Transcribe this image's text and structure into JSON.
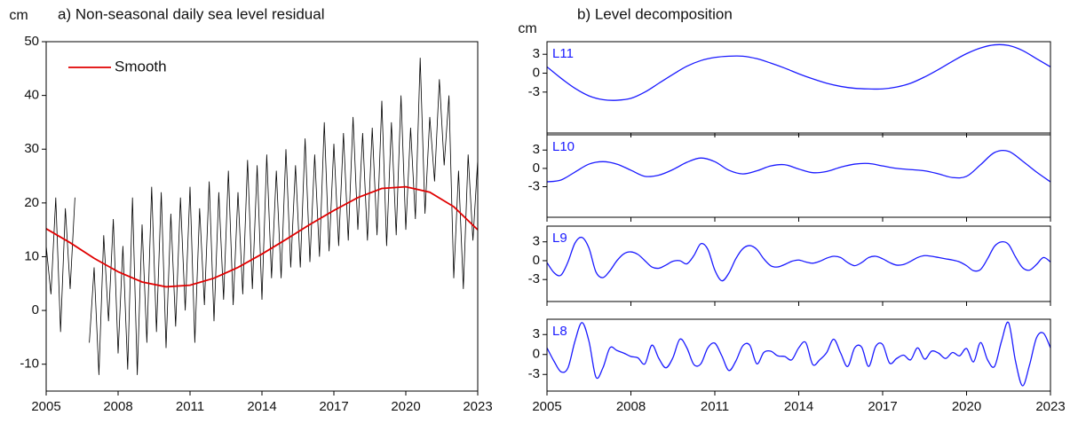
{
  "chart_data": [
    {
      "type": "line",
      "title": "a)  Non-seasonal daily sea level residual",
      "y_label": "cm",
      "xlim": [
        2005,
        2023
      ],
      "xticks": [
        2005,
        2008,
        2011,
        2014,
        2017,
        2020,
        2023
      ],
      "show_xtick_labels": true,
      "ylim": [
        -15,
        50
      ],
      "yticks": [
        -10,
        0,
        10,
        20,
        30,
        40,
        50
      ],
      "legend": "upper left",
      "curve": "straight",
      "series": [
        {
          "color": "#000000",
          "x": [
            2005.0,
            2005.2,
            2005.4,
            2005.6,
            2005.8,
            2006.0,
            2006.2,
            2006.4,
            2006.6,
            2006.8,
            2007.0,
            2007.2,
            2007.4,
            2007.6,
            2007.8,
            2008.0,
            2008.2,
            2008.4,
            2008.6,
            2008.8,
            2009.0,
            2009.2,
            2009.4,
            2009.6,
            2009.8,
            2010.0,
            2010.2,
            2010.4,
            2010.6,
            2010.8,
            2011.0,
            2011.2,
            2011.4,
            2011.6,
            2011.8,
            2012.0,
            2012.2,
            2012.4,
            2012.6,
            2012.8,
            2013.0,
            2013.2,
            2013.4,
            2013.6,
            2013.8,
            2014.0,
            2014.2,
            2014.4,
            2014.6,
            2014.8,
            2015.0,
            2015.2,
            2015.4,
            2015.6,
            2015.8,
            2016.0,
            2016.2,
            2016.4,
            2016.6,
            2016.8,
            2017.0,
            2017.2,
            2017.4,
            2017.6,
            2017.8,
            2018.0,
            2018.2,
            2018.4,
            2018.6,
            2018.8,
            2019.0,
            2019.2,
            2019.4,
            2019.6,
            2019.8,
            2020.0,
            2020.2,
            2020.4,
            2020.6,
            2020.8,
            2021.0,
            2021.2,
            2021.4,
            2021.6,
            2021.8,
            2022.0,
            2022.2,
            2022.4,
            2022.6,
            2022.8,
            2023.0
          ],
          "values": [
            12,
            3,
            21,
            -4,
            19,
            4,
            21,
            null,
            null,
            -6,
            8,
            -12,
            14,
            -2,
            17,
            -8,
            12,
            -11,
            21,
            -12,
            16,
            -6,
            23,
            -4,
            22,
            -7,
            18,
            -3,
            21,
            0,
            23,
            -6,
            19,
            1,
            24,
            -2,
            22,
            2,
            26,
            1,
            22,
            3,
            28,
            4,
            27,
            2,
            29,
            6,
            26,
            6,
            30,
            8,
            27,
            8,
            32,
            9,
            29,
            10,
            35,
            11,
            31,
            12,
            33,
            13,
            36,
            15,
            33,
            13,
            34,
            14,
            39,
            12,
            35,
            14,
            40,
            15,
            34,
            17,
            47,
            18,
            36,
            24,
            43,
            27,
            40,
            6,
            26,
            4,
            29,
            13,
            28
          ]
        },
        {
          "name": "Smooth",
          "color": "#e00000",
          "x": [
            2005,
            2006,
            2007,
            2008,
            2009,
            2010,
            2011,
            2012,
            2013,
            2014,
            2015,
            2016,
            2017,
            2018,
            2019,
            2020,
            2021,
            2022,
            2023
          ],
          "values": [
            15.2,
            12.6,
            9.7,
            7.2,
            5.3,
            4.4,
            4.7,
            6.0,
            8.0,
            10.5,
            13.2,
            16.0,
            18.6,
            21.0,
            22.7,
            23.0,
            22.0,
            19.3,
            15.0
          ]
        }
      ]
    },
    {
      "type": "line",
      "title": "b) Level decomposition",
      "y_label": "cm",
      "xlim": [
        2005,
        2023
      ],
      "xticks": [
        2005,
        2008,
        2011,
        2014,
        2017,
        2020,
        2023
      ],
      "show_xtick_labels": false,
      "ylim": [
        -9.5,
        5
      ],
      "yticks": [
        -3,
        0,
        3
      ],
      "curve": "smooth",
      "x": [
        2005,
        2005.5,
        2006,
        2006.5,
        2007,
        2007.5,
        2008,
        2008.5,
        2009,
        2009.5,
        2010,
        2010.5,
        2011,
        2011.5,
        2012,
        2012.5,
        2013,
        2013.5,
        2014,
        2014.5,
        2015,
        2015.5,
        2016,
        2016.5,
        2017,
        2017.5,
        2018,
        2018.5,
        2019,
        2019.5,
        2020,
        2020.5,
        2021,
        2021.5,
        2022,
        2022.5,
        2023
      ],
      "series": [
        {
          "name": "L11",
          "color": "#1a1aff",
          "values": [
            1.0,
            -0.8,
            -2.4,
            -3.6,
            -4.2,
            -4.3,
            -4.0,
            -3.0,
            -1.6,
            -0.2,
            1.1,
            2.0,
            2.5,
            2.7,
            2.7,
            2.3,
            1.6,
            0.8,
            -0.1,
            -0.9,
            -1.6,
            -2.1,
            -2.4,
            -2.5,
            -2.5,
            -2.2,
            -1.6,
            -0.6,
            0.6,
            1.9,
            3.1,
            4.0,
            4.5,
            4.4,
            3.6,
            2.3,
            1.0
          ]
        }
      ]
    },
    {
      "type": "line",
      "xlim": [
        2005,
        2023
      ],
      "xticks": [
        2005,
        2008,
        2011,
        2014,
        2017,
        2020,
        2023
      ],
      "show_xtick_labels": false,
      "ylim": [
        -8,
        5.5
      ],
      "yticks": [
        -3,
        0,
        3
      ],
      "curve": "smooth",
      "x": [
        2005,
        2005.5,
        2006,
        2006.5,
        2007,
        2007.5,
        2008,
        2008.5,
        2009,
        2009.5,
        2010,
        2010.5,
        2011,
        2011.5,
        2012,
        2012.5,
        2013,
        2013.5,
        2014,
        2014.5,
        2015,
        2015.5,
        2016,
        2016.5,
        2017,
        2017.5,
        2018,
        2018.5,
        2019,
        2019.5,
        2020,
        2020.5,
        2021,
        2021.5,
        2022,
        2022.5,
        2023
      ],
      "series": [
        {
          "name": "L10",
          "color": "#1a1aff",
          "values": [
            -2.2,
            -1.9,
            -0.6,
            0.7,
            1.1,
            0.7,
            -0.3,
            -1.3,
            -1.1,
            -0.2,
            1.0,
            1.7,
            1.1,
            -0.3,
            -0.9,
            -0.4,
            0.4,
            0.6,
            -0.1,
            -0.7,
            -0.5,
            0.2,
            0.7,
            0.8,
            0.4,
            0.0,
            -0.2,
            -0.4,
            -0.9,
            -1.5,
            -1.3,
            0.6,
            2.6,
            2.8,
            1.2,
            -0.6,
            -2.2
          ]
        }
      ]
    },
    {
      "type": "line",
      "xlim": [
        2005,
        2023
      ],
      "xticks": [
        2005,
        2008,
        2011,
        2014,
        2017,
        2020,
        2023
      ],
      "show_xtick_labels": false,
      "ylim": [
        -6.5,
        5.5
      ],
      "yticks": [
        -3,
        0,
        3
      ],
      "curve": "smooth",
      "x": [
        2005,
        2005.25,
        2005.5,
        2005.75,
        2006,
        2006.25,
        2006.5,
        2006.75,
        2007,
        2007.25,
        2007.5,
        2007.75,
        2008,
        2008.25,
        2008.5,
        2008.75,
        2009,
        2009.25,
        2009.5,
        2009.75,
        2010,
        2010.25,
        2010.5,
        2010.75,
        2011,
        2011.25,
        2011.5,
        2011.75,
        2012,
        2012.25,
        2012.5,
        2012.75,
        2013,
        2013.25,
        2013.5,
        2013.75,
        2014,
        2014.25,
        2014.5,
        2014.75,
        2015,
        2015.25,
        2015.5,
        2015.75,
        2016,
        2016.25,
        2016.5,
        2016.75,
        2017,
        2017.25,
        2017.5,
        2017.75,
        2018,
        2018.25,
        2018.5,
        2018.75,
        2019,
        2019.25,
        2019.5,
        2019.75,
        2020,
        2020.25,
        2020.5,
        2020.75,
        2021,
        2021.25,
        2021.5,
        2021.75,
        2022,
        2022.25,
        2022.5,
        2022.75,
        2023
      ],
      "series": [
        {
          "name": "L9",
          "color": "#1a1aff",
          "values": [
            -0.3,
            -1.9,
            -2.3,
            -0.2,
            2.8,
            3.7,
            2.0,
            -1.8,
            -2.7,
            -1.6,
            0.0,
            1.1,
            1.4,
            1.0,
            0.0,
            -1.0,
            -1.2,
            -0.7,
            -0.1,
            0.0,
            -0.5,
            0.8,
            2.7,
            1.8,
            -1.5,
            -3.2,
            -2.0,
            0.3,
            1.9,
            2.4,
            1.8,
            0.3,
            -0.8,
            -1.0,
            -0.6,
            -0.1,
            0.1,
            -0.2,
            -0.4,
            -0.1,
            0.4,
            0.7,
            0.5,
            -0.3,
            -0.8,
            -0.3,
            0.5,
            0.7,
            0.3,
            -0.3,
            -0.7,
            -0.6,
            -0.1,
            0.5,
            0.8,
            0.7,
            0.5,
            0.3,
            0.1,
            -0.2,
            -0.8,
            -1.6,
            -1.4,
            0.3,
            2.3,
            3.0,
            2.6,
            0.6,
            -1.1,
            -1.5,
            -0.6,
            0.5,
            -0.2
          ]
        }
      ]
    },
    {
      "type": "line",
      "xlim": [
        2005,
        2023
      ],
      "xticks": [
        2005,
        2008,
        2011,
        2014,
        2017,
        2020,
        2023
      ],
      "show_xtick_labels": true,
      "ylim": [
        -5.5,
        5.3
      ],
      "yticks": [
        -3,
        0,
        3
      ],
      "curve": "smooth",
      "x": [
        2005,
        2005.25,
        2005.5,
        2005.75,
        2006,
        2006.25,
        2006.5,
        2006.75,
        2007,
        2007.25,
        2007.5,
        2007.75,
        2008,
        2008.25,
        2008.5,
        2008.75,
        2009,
        2009.25,
        2009.5,
        2009.75,
        2010,
        2010.25,
        2010.5,
        2010.75,
        2011,
        2011.25,
        2011.5,
        2011.75,
        2012,
        2012.25,
        2012.5,
        2012.75,
        2013,
        2013.25,
        2013.5,
        2013.75,
        2014,
        2014.25,
        2014.5,
        2014.75,
        2015,
        2015.25,
        2015.5,
        2015.75,
        2016,
        2016.25,
        2016.5,
        2016.75,
        2017,
        2017.25,
        2017.5,
        2017.75,
        2018,
        2018.25,
        2018.5,
        2018.75,
        2019,
        2019.25,
        2019.5,
        2019.75,
        2020,
        2020.25,
        2020.5,
        2020.75,
        2021,
        2021.25,
        2021.5,
        2021.75,
        2022,
        2022.25,
        2022.5,
        2022.75,
        2023
      ],
      "series": [
        {
          "name": "L8",
          "color": "#1a1aff",
          "values": [
            1.0,
            -1.0,
            -2.6,
            -2.0,
            2.0,
            4.8,
            2.0,
            -3.4,
            -2.0,
            1.0,
            0.6,
            0.2,
            -0.3,
            -0.5,
            -1.4,
            1.4,
            -0.6,
            -2.0,
            -0.5,
            2.3,
            1.0,
            -1.5,
            -1.4,
            1.0,
            1.7,
            -0.2,
            -2.4,
            -1.0,
            1.3,
            1.4,
            -1.4,
            0.3,
            0.5,
            -0.2,
            -0.3,
            -0.8,
            1.0,
            1.8,
            -1.5,
            -0.8,
            0.3,
            2.3,
            0.2,
            -1.8,
            1.0,
            1.1,
            -1.8,
            1.2,
            1.5,
            -1.3,
            -0.6,
            -0.1,
            -0.8,
            1.0,
            -0.7,
            0.5,
            0.2,
            -0.6,
            0.3,
            -0.2,
            0.9,
            -1.1,
            1.8,
            -0.8,
            -1.8,
            2.0,
            4.8,
            -1.0,
            -4.7,
            -1.6,
            2.5,
            3.2,
            1.0
          ]
        }
      ]
    }
  ]
}
